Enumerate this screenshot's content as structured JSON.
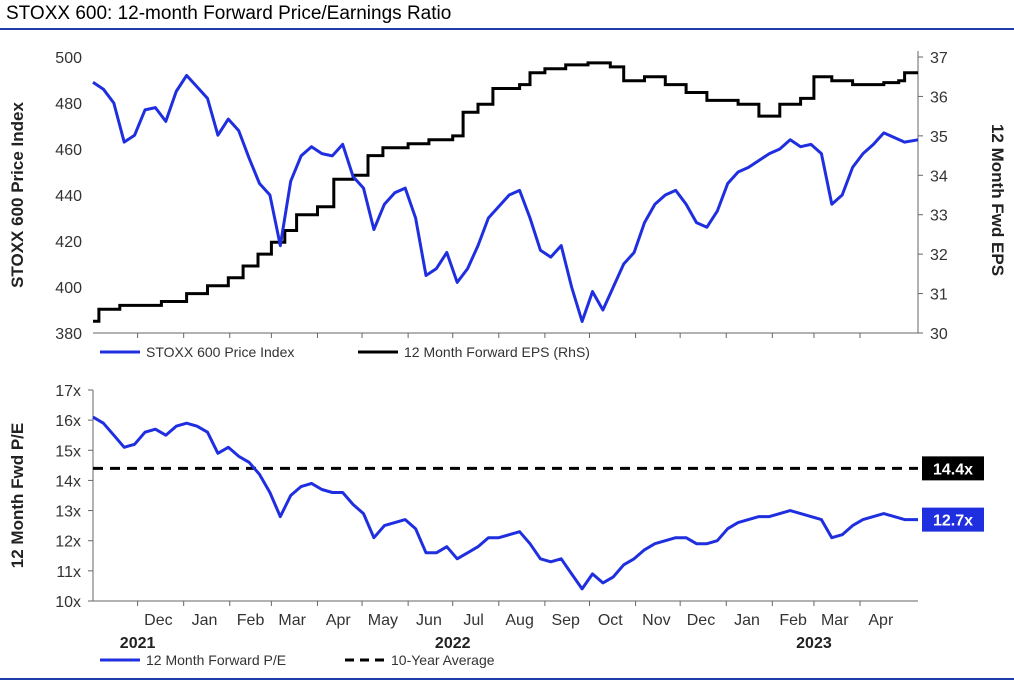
{
  "title": "STOXX 600: 12-month Forward Price/Earnings Ratio",
  "colors": {
    "blue": "#1f2fe0",
    "black": "#000000",
    "rule": "#1f3da8"
  },
  "chart_data": [
    {
      "type": "line",
      "name": "top",
      "ylabel_left": "STOXX 600 Price Index",
      "ylabel_right": "12 Month Fwd EPS",
      "ylim_left": [
        380,
        500
      ],
      "ylim_right": [
        30,
        37
      ],
      "yticks_left": [
        "380",
        "400",
        "420",
        "440",
        "460",
        "480",
        "500"
      ],
      "yticks_right": [
        "30",
        "31",
        "32",
        "33",
        "34",
        "35",
        "36",
        "37"
      ],
      "x_range": [
        "2021-11-01",
        "2023-05-10"
      ],
      "legend": [
        "STOXX 600 Price Index",
        "12 Month Forward EPS (RhS)"
      ],
      "series": [
        {
          "name": "STOXX 600 Price Index",
          "axis": "left",
          "points": [
            [
              "2021-11-01",
              489
            ],
            [
              "2021-11-08",
              486
            ],
            [
              "2021-11-15",
              480
            ],
            [
              "2021-11-22",
              463
            ],
            [
              "2021-11-29",
              466
            ],
            [
              "2021-12-06",
              477
            ],
            [
              "2021-12-13",
              478
            ],
            [
              "2021-12-20",
              472
            ],
            [
              "2021-12-27",
              485
            ],
            [
              "2022-01-03",
              492
            ],
            [
              "2022-01-10",
              487
            ],
            [
              "2022-01-17",
              482
            ],
            [
              "2022-01-24",
              466
            ],
            [
              "2022-01-31",
              473
            ],
            [
              "2022-02-07",
              468
            ],
            [
              "2022-02-14",
              456
            ],
            [
              "2022-02-21",
              445
            ],
            [
              "2022-02-28",
              440
            ],
            [
              "2022-03-07",
              418
            ],
            [
              "2022-03-14",
              446
            ],
            [
              "2022-03-21",
              457
            ],
            [
              "2022-03-28",
              461
            ],
            [
              "2022-04-04",
              458
            ],
            [
              "2022-04-11",
              457
            ],
            [
              "2022-04-18",
              462
            ],
            [
              "2022-04-25",
              448
            ],
            [
              "2022-05-02",
              443
            ],
            [
              "2022-05-09",
              425
            ],
            [
              "2022-05-16",
              436
            ],
            [
              "2022-05-23",
              441
            ],
            [
              "2022-05-30",
              443
            ],
            [
              "2022-06-06",
              430
            ],
            [
              "2022-06-13",
              405
            ],
            [
              "2022-06-20",
              408
            ],
            [
              "2022-06-27",
              415
            ],
            [
              "2022-07-04",
              402
            ],
            [
              "2022-07-11",
              408
            ],
            [
              "2022-07-18",
              418
            ],
            [
              "2022-07-25",
              430
            ],
            [
              "2022-08-01",
              435
            ],
            [
              "2022-08-08",
              440
            ],
            [
              "2022-08-15",
              442
            ],
            [
              "2022-08-22",
              430
            ],
            [
              "2022-08-29",
              416
            ],
            [
              "2022-09-05",
              413
            ],
            [
              "2022-09-12",
              418
            ],
            [
              "2022-09-19",
              400
            ],
            [
              "2022-09-26",
              385
            ],
            [
              "2022-10-03",
              398
            ],
            [
              "2022-10-10",
              390
            ],
            [
              "2022-10-17",
              400
            ],
            [
              "2022-10-24",
              410
            ],
            [
              "2022-10-31",
              415
            ],
            [
              "2022-11-07",
              428
            ],
            [
              "2022-11-14",
              436
            ],
            [
              "2022-11-21",
              440
            ],
            [
              "2022-11-28",
              442
            ],
            [
              "2022-12-05",
              436
            ],
            [
              "2022-12-12",
              428
            ],
            [
              "2022-12-19",
              426
            ],
            [
              "2022-12-26",
              433
            ],
            [
              "2023-01-02",
              445
            ],
            [
              "2023-01-09",
              450
            ],
            [
              "2023-01-16",
              452
            ],
            [
              "2023-01-23",
              455
            ],
            [
              "2023-01-30",
              458
            ],
            [
              "2023-02-06",
              460
            ],
            [
              "2023-02-13",
              464
            ],
            [
              "2023-02-20",
              461
            ],
            [
              "2023-02-27",
              462
            ],
            [
              "2023-03-06",
              458
            ],
            [
              "2023-03-13",
              436
            ],
            [
              "2023-03-20",
              440
            ],
            [
              "2023-03-27",
              452
            ],
            [
              "2023-04-03",
              458
            ],
            [
              "2023-04-10",
              462
            ],
            [
              "2023-04-17",
              467
            ],
            [
              "2023-04-24",
              465
            ],
            [
              "2023-05-01",
              463
            ],
            [
              "2023-05-10",
              464
            ]
          ]
        },
        {
          "name": "12 Month Forward EPS (RhS)",
          "axis": "right",
          "points": [
            [
              "2021-11-01",
              30.3
            ],
            [
              "2021-11-05",
              30.6
            ],
            [
              "2021-11-19",
              30.7
            ],
            [
              "2021-12-17",
              30.8
            ],
            [
              "2022-01-03",
              31.0
            ],
            [
              "2022-01-17",
              31.2
            ],
            [
              "2022-01-31",
              31.4
            ],
            [
              "2022-02-10",
              31.7
            ],
            [
              "2022-02-20",
              32.0
            ],
            [
              "2022-03-01",
              32.3
            ],
            [
              "2022-03-10",
              32.6
            ],
            [
              "2022-03-18",
              33.0
            ],
            [
              "2022-04-01",
              33.2
            ],
            [
              "2022-04-12",
              33.9
            ],
            [
              "2022-04-25",
              34.0
            ],
            [
              "2022-05-05",
              34.5
            ],
            [
              "2022-05-15",
              34.7
            ],
            [
              "2022-06-01",
              34.8
            ],
            [
              "2022-06-15",
              34.9
            ],
            [
              "2022-07-01",
              35.0
            ],
            [
              "2022-07-08",
              35.6
            ],
            [
              "2022-07-18",
              35.8
            ],
            [
              "2022-07-28",
              36.2
            ],
            [
              "2022-08-15",
              36.3
            ],
            [
              "2022-08-22",
              36.6
            ],
            [
              "2022-09-01",
              36.7
            ],
            [
              "2022-09-15",
              36.8
            ],
            [
              "2022-09-30",
              36.85
            ],
            [
              "2022-10-15",
              36.75
            ],
            [
              "2022-10-24",
              36.4
            ],
            [
              "2022-11-07",
              36.5
            ],
            [
              "2022-11-21",
              36.3
            ],
            [
              "2022-12-05",
              36.1
            ],
            [
              "2022-12-19",
              35.9
            ],
            [
              "2023-01-09",
              35.8
            ],
            [
              "2023-01-23",
              35.5
            ],
            [
              "2023-02-06",
              35.8
            ],
            [
              "2023-02-20",
              35.95
            ],
            [
              "2023-03-01",
              36.5
            ],
            [
              "2023-03-13",
              36.4
            ],
            [
              "2023-03-27",
              36.3
            ],
            [
              "2023-04-17",
              36.35
            ],
            [
              "2023-04-27",
              36.4
            ],
            [
              "2023-05-01",
              36.6
            ],
            [
              "2023-05-10",
              36.6
            ]
          ]
        }
      ]
    },
    {
      "type": "line",
      "name": "bottom",
      "ylabel": "12 Month Fwd P/E",
      "ylim": [
        10,
        17
      ],
      "yticks": [
        "10x",
        "11x",
        "12x",
        "13x",
        "14x",
        "15x",
        "16x",
        "17x"
      ],
      "x_range": [
        "2021-11-01",
        "2023-05-10"
      ],
      "xticks": [
        "Dec",
        "Jan",
        "Feb",
        "Mar",
        "Apr",
        "May",
        "Jun",
        "Jul",
        "Aug",
        "Sep",
        "Oct",
        "Nov",
        "Dec",
        "Jan",
        "Feb",
        "Mar",
        "Apr"
      ],
      "xtick_dates": [
        "2021-12-15",
        "2022-01-15",
        "2022-02-15",
        "2022-03-15",
        "2022-04-15",
        "2022-05-15",
        "2022-06-15",
        "2022-07-15",
        "2022-08-15",
        "2022-09-15",
        "2022-10-15",
        "2022-11-15",
        "2022-12-15",
        "2023-01-15",
        "2023-02-15",
        "2023-03-15",
        "2023-04-15"
      ],
      "year_labels": [
        "2021",
        "2022",
        "2023"
      ],
      "year_label_dates": [
        "2021-12-01",
        "2022-07-01",
        "2023-03-01"
      ],
      "legend": [
        "12 Month Forward P/E",
        "10-Year Average"
      ],
      "ten_year_average": 14.4,
      "avg_label": "14.4x",
      "last_label": "12.7x",
      "series": [
        {
          "name": "12 Month Forward P/E",
          "points": [
            [
              "2021-11-01",
              16.1
            ],
            [
              "2021-11-08",
              15.9
            ],
            [
              "2021-11-15",
              15.5
            ],
            [
              "2021-11-22",
              15.1
            ],
            [
              "2021-11-29",
              15.2
            ],
            [
              "2021-12-06",
              15.6
            ],
            [
              "2021-12-13",
              15.7
            ],
            [
              "2021-12-20",
              15.5
            ],
            [
              "2021-12-27",
              15.8
            ],
            [
              "2022-01-03",
              15.9
            ],
            [
              "2022-01-10",
              15.8
            ],
            [
              "2022-01-17",
              15.6
            ],
            [
              "2022-01-24",
              14.9
            ],
            [
              "2022-01-31",
              15.1
            ],
            [
              "2022-02-07",
              14.8
            ],
            [
              "2022-02-14",
              14.6
            ],
            [
              "2022-02-21",
              14.2
            ],
            [
              "2022-02-28",
              13.6
            ],
            [
              "2022-03-07",
              12.8
            ],
            [
              "2022-03-14",
              13.5
            ],
            [
              "2022-03-21",
              13.8
            ],
            [
              "2022-03-28",
              13.9
            ],
            [
              "2022-04-04",
              13.7
            ],
            [
              "2022-04-11",
              13.6
            ],
            [
              "2022-04-18",
              13.6
            ],
            [
              "2022-04-25",
              13.2
            ],
            [
              "2022-05-02",
              12.9
            ],
            [
              "2022-05-09",
              12.1
            ],
            [
              "2022-05-16",
              12.5
            ],
            [
              "2022-05-23",
              12.6
            ],
            [
              "2022-05-30",
              12.7
            ],
            [
              "2022-06-06",
              12.4
            ],
            [
              "2022-06-13",
              11.6
            ],
            [
              "2022-06-20",
              11.6
            ],
            [
              "2022-06-27",
              11.8
            ],
            [
              "2022-07-04",
              11.4
            ],
            [
              "2022-07-11",
              11.6
            ],
            [
              "2022-07-18",
              11.8
            ],
            [
              "2022-07-25",
              12.1
            ],
            [
              "2022-08-01",
              12.1
            ],
            [
              "2022-08-08",
              12.2
            ],
            [
              "2022-08-15",
              12.3
            ],
            [
              "2022-08-22",
              11.9
            ],
            [
              "2022-08-29",
              11.4
            ],
            [
              "2022-09-05",
              11.3
            ],
            [
              "2022-09-12",
              11.4
            ],
            [
              "2022-09-19",
              10.9
            ],
            [
              "2022-09-26",
              10.4
            ],
            [
              "2022-10-03",
              10.9
            ],
            [
              "2022-10-10",
              10.6
            ],
            [
              "2022-10-17",
              10.8
            ],
            [
              "2022-10-24",
              11.2
            ],
            [
              "2022-10-31",
              11.4
            ],
            [
              "2022-11-07",
              11.7
            ],
            [
              "2022-11-14",
              11.9
            ],
            [
              "2022-11-21",
              12.0
            ],
            [
              "2022-11-28",
              12.1
            ],
            [
              "2022-12-05",
              12.1
            ],
            [
              "2022-12-12",
              11.9
            ],
            [
              "2022-12-19",
              11.9
            ],
            [
              "2022-12-26",
              12.0
            ],
            [
              "2023-01-02",
              12.4
            ],
            [
              "2023-01-09",
              12.6
            ],
            [
              "2023-01-16",
              12.7
            ],
            [
              "2023-01-23",
              12.8
            ],
            [
              "2023-01-30",
              12.8
            ],
            [
              "2023-02-06",
              12.9
            ],
            [
              "2023-02-13",
              13.0
            ],
            [
              "2023-02-20",
              12.9
            ],
            [
              "2023-02-27",
              12.8
            ],
            [
              "2023-03-06",
              12.7
            ],
            [
              "2023-03-13",
              12.1
            ],
            [
              "2023-03-20",
              12.2
            ],
            [
              "2023-03-27",
              12.5
            ],
            [
              "2023-04-03",
              12.7
            ],
            [
              "2023-04-10",
              12.8
            ],
            [
              "2023-04-17",
              12.9
            ],
            [
              "2023-04-24",
              12.8
            ],
            [
              "2023-05-01",
              12.7
            ],
            [
              "2023-05-10",
              12.7
            ]
          ]
        }
      ]
    }
  ]
}
